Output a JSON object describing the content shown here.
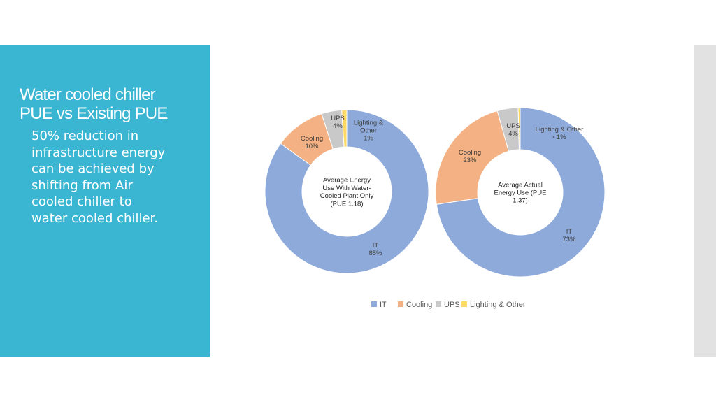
{
  "slide": {
    "title_line1": "Water cooled chiller",
    "title_line2": "PUE vs  Existing PUE",
    "body_lines": [
      "50% reduction in",
      "infrastructure energy",
      "can be achieved by",
      "shifting from Air",
      "cooled chiller to",
      "water cooled chiller."
    ]
  },
  "chart_data": {
    "type": "pie",
    "variant": "donut",
    "legend_position": "bottom",
    "legend": [
      {
        "name": "IT",
        "color": "#8eaadb"
      },
      {
        "name": "Cooling",
        "color": "#f4b183"
      },
      {
        "name": "UPS",
        "color": "#c9c9c9"
      },
      {
        "name": "Lighting & Other",
        "color": "#ffd966"
      }
    ],
    "charts": [
      {
        "center_label": [
          "Average Energy",
          "Use With Water-",
          "Cooled Plant Only",
          "(PUE 1.18)"
        ],
        "slices": [
          {
            "category": "IT",
            "value": 85,
            "label": [
              "IT",
              "85%"
            ]
          },
          {
            "category": "Cooling",
            "value": 10,
            "label": [
              "Cooling",
              "10%"
            ]
          },
          {
            "category": "UPS",
            "value": 4,
            "label": [
              "UPS",
              "4%"
            ]
          },
          {
            "category": "Lighting & Other",
            "value": 1,
            "label": [
              "Lighting &",
              "Other",
              "1%"
            ]
          }
        ]
      },
      {
        "center_label": [
          "Average Actual",
          "Energy Use (PUE",
          "1.37)"
        ],
        "slices": [
          {
            "category": "IT",
            "value": 73,
            "label": [
              "IT",
              "73%"
            ]
          },
          {
            "category": "Cooling",
            "value": 23,
            "label": [
              "Cooling",
              "23%"
            ]
          },
          {
            "category": "UPS",
            "value": 4,
            "label": [
              "UPS",
              "4%"
            ]
          },
          {
            "category": "Lighting & Other",
            "value": 0.4,
            "label": [
              "Lighting & Other",
              "<1%"
            ]
          }
        ]
      }
    ]
  }
}
